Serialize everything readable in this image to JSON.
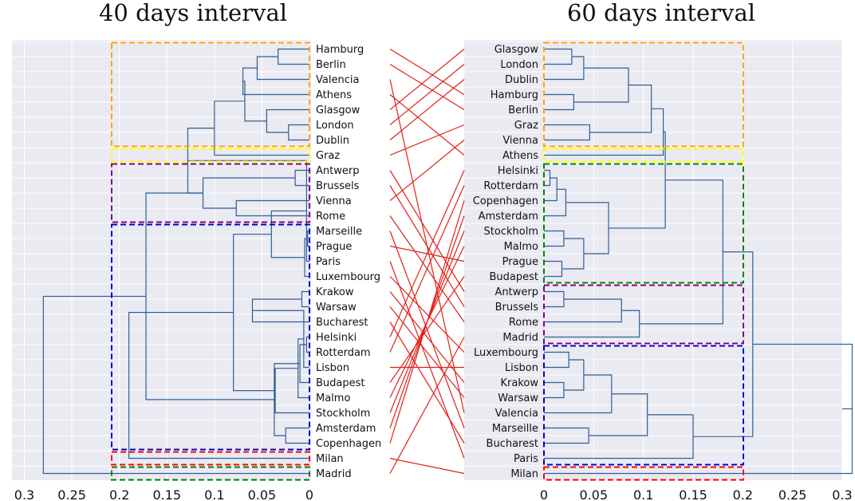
{
  "chart_data": [
    {
      "type": "dendrogram",
      "title": "40 days interval",
      "orientation": "leaves-right",
      "xlim": [
        0.3,
        0
      ],
      "xticks": [
        "0.3",
        "0.25",
        "0.2",
        "0.15",
        "0.1",
        "0.05",
        "0"
      ],
      "xtick_values": [
        0.3,
        0.25,
        0.2,
        0.15,
        0.1,
        0.05,
        0
      ],
      "leaves": [
        "Hamburg",
        "Berlin",
        "Valencia",
        "Athens",
        "Glasgow",
        "London",
        "Dublin",
        "Graz",
        "Antwerp",
        "Brussels",
        "Vienna",
        "Rome",
        "Marseille",
        "Prague",
        "Paris",
        "Luxembourg",
        "Krakow",
        "Warsaw",
        "Bucharest",
        "Helsinki",
        "Rotterdam",
        "Lisbon",
        "Budapest",
        "Malmo",
        "Stockholm",
        "Amsterdam",
        "Copenhagen",
        "Milan",
        "Madrid"
      ],
      "links": [
        [
          0,
          1,
          0.033
        ],
        [
          29,
          2,
          0.055
        ],
        [
          30,
          3,
          0.07
        ],
        [
          5,
          6,
          0.022
        ],
        [
          4,
          32,
          0.045
        ],
        [
          31,
          33,
          0.068
        ],
        [
          34,
          7,
          0.1
        ],
        [
          8,
          9,
          0.015
        ],
        [
          10,
          11,
          0.077
        ],
        [
          36,
          37,
          0.112
        ],
        [
          35,
          38,
          0.128
        ],
        [
          12,
          13,
          0.002
        ],
        [
          39,
          14,
          0.003
        ],
        [
          40,
          15,
          0.005
        ],
        [
          16,
          17,
          0.008
        ],
        [
          41,
          42,
          0.04
        ],
        [
          43,
          18,
          0.06
        ],
        [
          19,
          20,
          0.003
        ],
        [
          45,
          21,
          0.006
        ],
        [
          46,
          22,
          0.01
        ],
        [
          47,
          23,
          0.012
        ],
        [
          25,
          26,
          0.025
        ],
        [
          24,
          49,
          0.036
        ],
        [
          48,
          50,
          0.037
        ],
        [
          44,
          51,
          0.08
        ],
        [
          38,
          52,
          0.172
        ],
        [
          53,
          27,
          0.19
        ],
        [
          54,
          28,
          0.28
        ]
      ],
      "highlight_boxes": [
        {
          "from": "Hamburg",
          "to": "Dublin",
          "color": "#ffa500"
        },
        {
          "from": "Graz",
          "to": "Graz",
          "color": "#ffff00"
        },
        {
          "from": "Antwerp",
          "to": "Rome",
          "color": "#800080"
        },
        {
          "from": "Marseille",
          "to": "Copenhagen",
          "color": "#0000cc"
        },
        {
          "from": "Milan",
          "to": "Milan",
          "color": "#ff0000"
        },
        {
          "from": "Madrid",
          "to": "Madrid",
          "color": "#008000"
        }
      ]
    },
    {
      "type": "dendrogram",
      "title": "60 days interval",
      "orientation": "leaves-left",
      "xlim": [
        0,
        0.3
      ],
      "xticks": [
        "0",
        "0.05",
        "0.1",
        "0.15",
        "0.2",
        "0.25",
        "0.3"
      ],
      "xtick_values": [
        0,
        0.05,
        0.1,
        0.15,
        0.2,
        0.25,
        0.3
      ],
      "leaves": [
        "Glasgow",
        "London",
        "Dublin",
        "Hamburg",
        "Berlin",
        "Graz",
        "Vienna",
        "Athens",
        "Helsinki",
        "Rotterdam",
        "Copenhagen",
        "Amsterdam",
        "Stockholm",
        "Malmo",
        "Prague",
        "Budapest",
        "Antwerp",
        "Brussels",
        "Rome",
        "Madrid",
        "Luxembourg",
        "Lisbon",
        "Krakow",
        "Warsaw",
        "Valencia",
        "Marseille",
        "Bucharest",
        "Paris",
        "Milan"
      ],
      "links": [
        [
          0,
          1,
          0.028
        ],
        [
          29,
          2,
          0.04
        ],
        [
          3,
          4,
          0.03
        ],
        [
          30,
          31,
          0.085
        ],
        [
          5,
          6,
          0.046
        ],
        [
          32,
          33,
          0.108
        ],
        [
          34,
          7,
          0.12
        ],
        [
          8,
          9,
          0.006
        ],
        [
          36,
          10,
          0.013
        ],
        [
          37,
          11,
          0.022
        ],
        [
          12,
          13,
          0.02
        ],
        [
          14,
          15,
          0.018
        ],
        [
          39,
          40,
          0.04
        ],
        [
          38,
          41,
          0.065
        ],
        [
          35,
          42,
          0.122
        ],
        [
          16,
          17,
          0.02
        ],
        [
          44,
          18,
          0.078
        ],
        [
          45,
          19,
          0.096
        ],
        [
          43,
          46,
          0.18
        ],
        [
          20,
          21,
          0.025
        ],
        [
          22,
          23,
          0.02
        ],
        [
          48,
          49,
          0.04
        ],
        [
          50,
          24,
          0.068
        ],
        [
          25,
          26,
          0.045
        ],
        [
          51,
          52,
          0.104
        ],
        [
          53,
          27,
          0.15
        ],
        [
          47,
          54,
          0.21
        ],
        [
          55,
          28,
          0.31
        ]
      ],
      "highlight_boxes": [
        {
          "from": "Glasgow",
          "to": "Vienna",
          "color": "#ffa500"
        },
        {
          "from": "Athens",
          "to": "Athens",
          "color": "#ffff00"
        },
        {
          "from": "Helsinki",
          "to": "Budapest",
          "color": "#008000"
        },
        {
          "from": "Antwerp",
          "to": "Madrid",
          "color": "#800080"
        },
        {
          "from": "Luxembourg",
          "to": "Paris",
          "color": "#0000cc"
        },
        {
          "from": "Milan",
          "to": "Milan",
          "color": "#ff0000"
        }
      ]
    }
  ],
  "colors": {
    "panel_bg": "#eaeaf2",
    "grid": "#ffffff",
    "tree": "#2f5f96",
    "connector": "#e0201a"
  }
}
